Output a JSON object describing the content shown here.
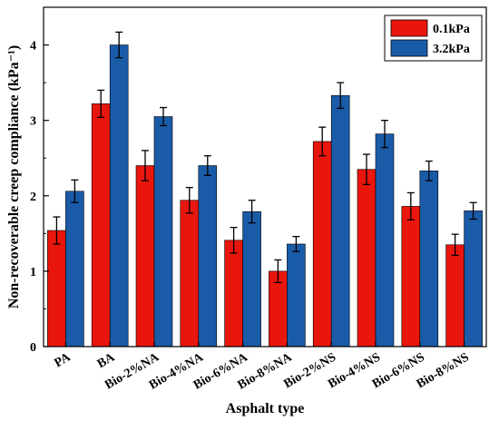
{
  "chart_data": {
    "type": "bar",
    "xlabel": "Asphalt type",
    "ylabel": "Non-recoverable creep compliance (kPa⁻¹)",
    "ylim": [
      0,
      4.5
    ],
    "yticks": [
      "0",
      "1",
      "2",
      "3",
      "4"
    ],
    "legend_position": "top-right",
    "error_bars": true,
    "categories": [
      "PA",
      "BA",
      "Bio-2%NA",
      "Bio-4%NA",
      "Bio-6%NA",
      "Bio-8%NA",
      "Bio-2%NS",
      "Bio-4%NS",
      "Bio-6%NS",
      "Bio-8%NS"
    ],
    "series": [
      {
        "name": "0.1kPa",
        "color": "#e8160d",
        "values": [
          1.54,
          3.22,
          2.4,
          1.94,
          1.41,
          1.0,
          2.72,
          2.35,
          1.86,
          1.35
        ],
        "errors": [
          0.18,
          0.18,
          0.2,
          0.17,
          0.17,
          0.15,
          0.19,
          0.2,
          0.18,
          0.14
        ]
      },
      {
        "name": "3.2kPa",
        "color": "#1a5ba8",
        "values": [
          2.06,
          4.0,
          3.05,
          2.4,
          1.79,
          1.36,
          3.33,
          2.82,
          2.33,
          1.8
        ],
        "errors": [
          0.15,
          0.17,
          0.12,
          0.13,
          0.15,
          0.1,
          0.17,
          0.18,
          0.13,
          0.11
        ]
      }
    ]
  }
}
